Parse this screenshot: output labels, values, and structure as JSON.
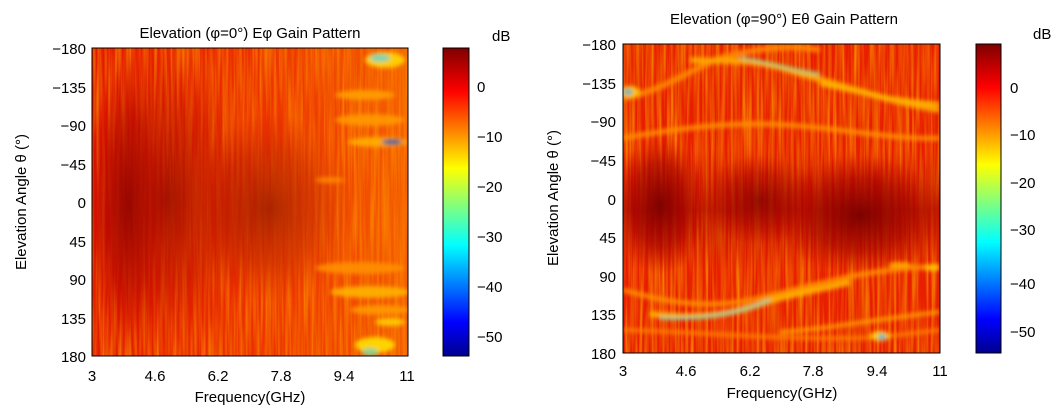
{
  "chart_data": [
    {
      "type": "heatmap",
      "title": "Elevation (φ=0°) Eφ Gain Pattern",
      "xlabel": "Frequency(GHz)",
      "ylabel": "Elevation Angle θ (°)",
      "xlim": [
        3,
        11
      ],
      "ylim": [
        -180,
        180
      ],
      "y_reversed": true,
      "x_ticks": [
        "3",
        "4.6",
        "6.2",
        "7.8",
        "9.4",
        "11"
      ],
      "y_ticks": [
        "−180",
        "−135",
        "−90",
        "−45",
        "0",
        "45",
        "90",
        "135",
        "180"
      ],
      "colorbar": {
        "label": "dB",
        "range": [
          -55,
          7
        ],
        "ticks": [
          "0",
          "−10",
          "−20",
          "−30",
          "−40",
          "−50"
        ],
        "tick_values": [
          0,
          -10,
          -20,
          -30,
          -40,
          -50
        ],
        "colormap": "jet"
      },
      "description_level": "mostly -2 to 5 dB; nulls near 10-11 GHz at angles -180, -90..-70, 70..110, 180"
    },
    {
      "type": "heatmap",
      "title": "Elevation (φ=90°) Eθ Gain Pattern",
      "xlabel": "Frequency(GHz)",
      "ylabel": "Elevation Angle θ (°)",
      "xlim": [
        3,
        11
      ],
      "ylim": [
        -180,
        180
      ],
      "y_reversed": true,
      "x_ticks": [
        "3",
        "4.6",
        "6.2",
        "7.8",
        "9.4",
        "11"
      ],
      "y_ticks": [
        "−180",
        "−135",
        "−90",
        "−45",
        "0",
        "45",
        "90",
        "135",
        "180"
      ],
      "colorbar": {
        "label": "dB",
        "range": [
          -55,
          7
        ],
        "ticks": [
          "0",
          "−10",
          "−20",
          "−30",
          "−40",
          "−50"
        ],
        "tick_values": [
          0,
          -10,
          -20,
          -30,
          -40,
          -50
        ],
        "colormap": "jet"
      },
      "description_level": "strong 0 to 5 dB band around 0°; diagonal null ridges near -135° to -70° and 100° to 140°"
    }
  ]
}
